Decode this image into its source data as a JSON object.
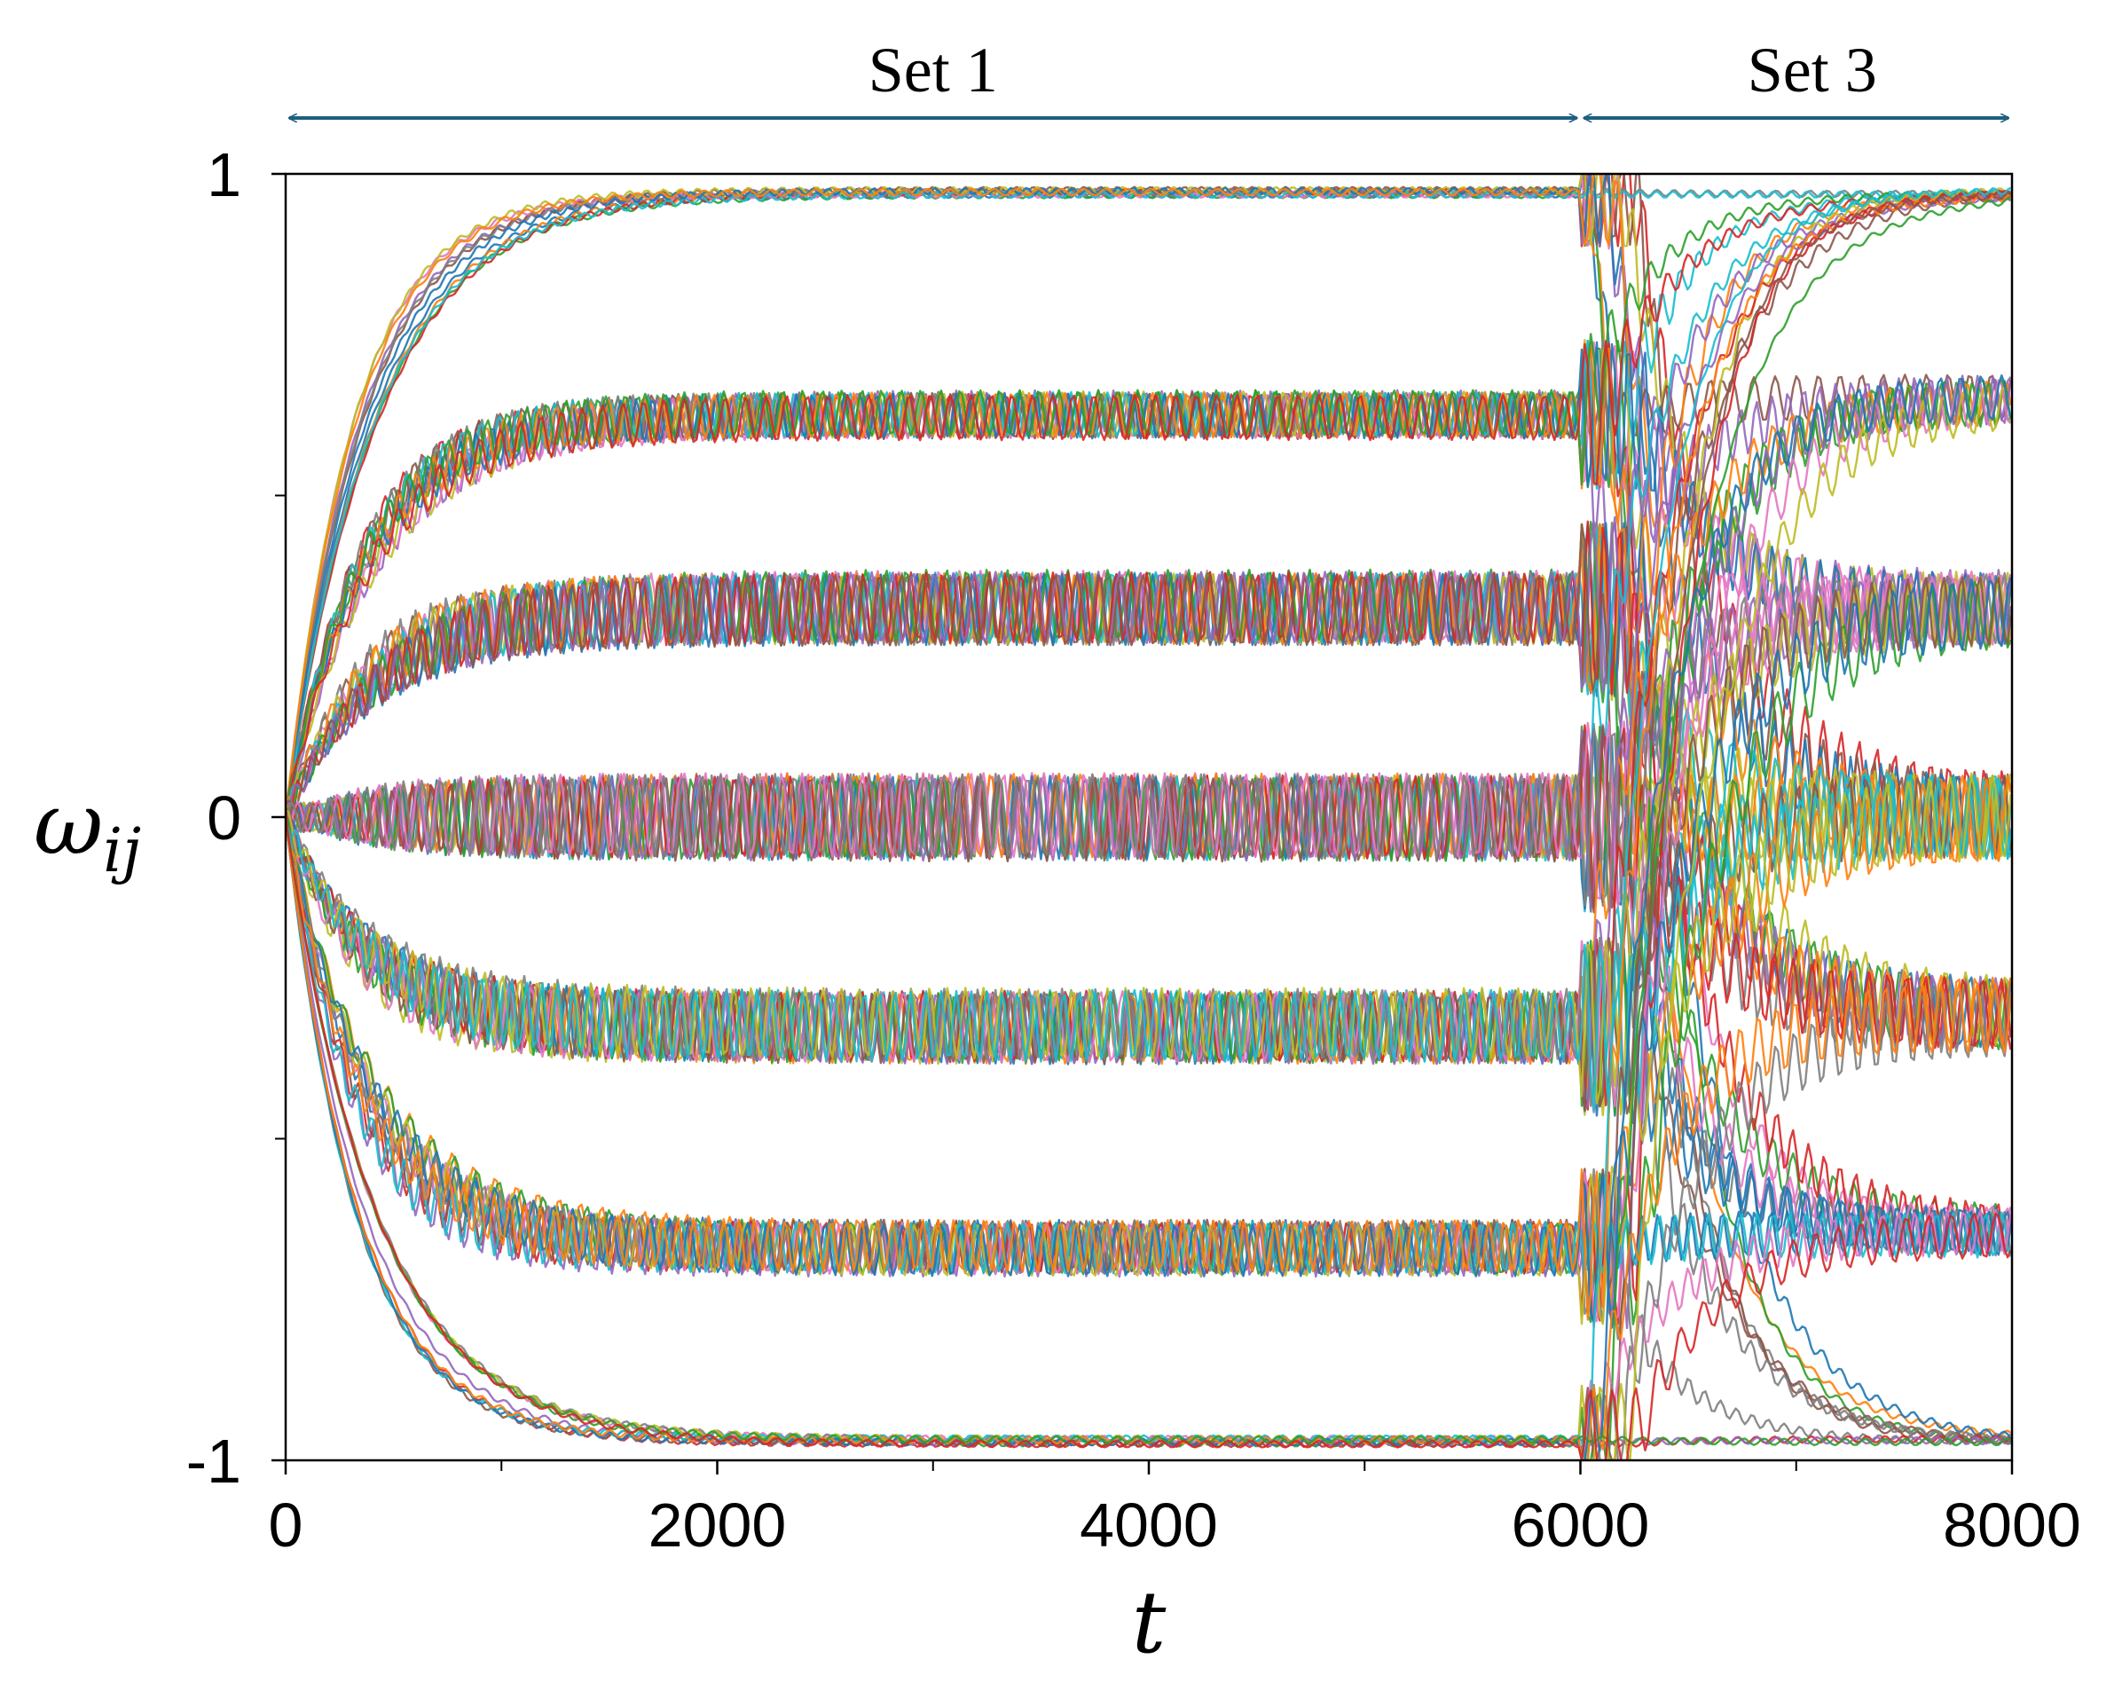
{
  "chart_data": {
    "type": "line",
    "title": "",
    "xlabel": "t",
    "ylabel_main": "ω",
    "ylabel_sub": "ij",
    "xlim": [
      0,
      8000
    ],
    "ylim": [
      -1,
      1
    ],
    "x_ticks": [
      {
        "value": 0,
        "label": "0"
      },
      {
        "value": 2000,
        "label": "2000"
      },
      {
        "value": 4000,
        "label": "4000"
      },
      {
        "value": 6000,
        "label": "6000"
      },
      {
        "value": 8000,
        "label": "8000"
      }
    ],
    "x_minor_ticks": [
      1000,
      3000,
      5000,
      7000
    ],
    "y_ticks": [
      {
        "value": -1,
        "label": "-1"
      },
      {
        "value": 0,
        "label": "0"
      },
      {
        "value": 1,
        "label": "1"
      }
    ],
    "y_minor_ticks": [
      -0.5,
      0.5
    ],
    "phases": [
      {
        "label": "Set 1",
        "start": 0,
        "end": 6000
      },
      {
        "label": "Set 3",
        "start": 6000,
        "end": 8000
      }
    ],
    "switch_time": 6000,
    "set1_levels": [
      {
        "level": 0.97,
        "osc": 0.005
      },
      {
        "level": 0.625,
        "osc": 0.035
      },
      {
        "level": 0.325,
        "osc": 0.055
      },
      {
        "level": 0.0,
        "osc": 0.065
      },
      {
        "level": -0.325,
        "osc": 0.055
      },
      {
        "level": -0.67,
        "osc": 0.04
      },
      {
        "level": -0.97,
        "osc": 0.005
      }
    ],
    "set3_levels": [
      {
        "level": 0.97,
        "osc": 0.005
      },
      {
        "level": 0.65,
        "osc": 0.035
      },
      {
        "level": 0.325,
        "osc": 0.055
      },
      {
        "level": 0.0,
        "osc": 0.065
      },
      {
        "level": -0.31,
        "osc": 0.055
      },
      {
        "level": -0.645,
        "osc": 0.035
      },
      {
        "level": -0.97,
        "osc": 0.005
      }
    ],
    "time_constant_set1": 350,
    "time_constant_set3": 300,
    "series_colors": [
      "#1f77b4",
      "#ff7f0e",
      "#2ca02c",
      "#d62728",
      "#9467bd",
      "#8c564b",
      "#e377c2",
      "#7f7f7f",
      "#bcbd22",
      "#17becf"
    ],
    "arrow_color": "#1f5f80"
  }
}
